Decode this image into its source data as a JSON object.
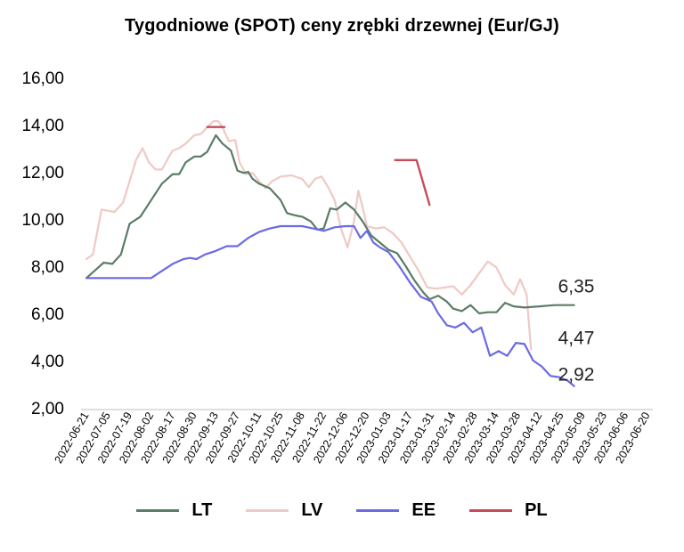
{
  "chart_data": {
    "type": "line",
    "title": "Tygodniowe (SPOT) ceny zrębki drzewnej (Eur/GJ)",
    "ylim": [
      2,
      16
    ],
    "yticks": [
      "2,00",
      "4,00",
      "6,00",
      "8,00",
      "10,00",
      "12,00",
      "14,00",
      "16,00"
    ],
    "xticks": [
      "2022-06-21",
      "2022-07-05",
      "2022-07-19",
      "2022-08-02",
      "2022-08-17",
      "2022-08-30",
      "2022-09-13",
      "2022-09-27",
      "2022-10-11",
      "2022-10-25",
      "2022-11-08",
      "2022-11-22",
      "2022-12-06",
      "2022-12-20",
      "2023-01-03",
      "2023-01-17",
      "2023-01-31",
      "2023-02-14",
      "2023-02-28",
      "2023-03-14",
      "2023-03-28",
      "2023-04-12",
      "2023-04-25",
      "2023-05-09",
      "2023-05-23",
      "2023-06-06",
      "2023-06-20"
    ],
    "grid": false,
    "legend_position": "bottom",
    "series": [
      {
        "name": "LT",
        "color": "#5b7c66",
        "points": [
          [
            0,
            7.5
          ],
          [
            0.5,
            7.9
          ],
          [
            0.8,
            8.15
          ],
          [
            1.2,
            8.1
          ],
          [
            1.6,
            8.5
          ],
          [
            2,
            9.8
          ],
          [
            2.5,
            10.1
          ],
          [
            3,
            10.8
          ],
          [
            3.5,
            11.5
          ],
          [
            4,
            11.9
          ],
          [
            4.3,
            11.9
          ],
          [
            4.6,
            12.4
          ],
          [
            5,
            12.65
          ],
          [
            5.3,
            12.65
          ],
          [
            5.6,
            12.85
          ],
          [
            6,
            13.55
          ],
          [
            6.3,
            13.2
          ],
          [
            6.7,
            12.9
          ],
          [
            7,
            12.05
          ],
          [
            7.3,
            11.95
          ],
          [
            7.5,
            12.0
          ],
          [
            7.7,
            11.7
          ],
          [
            8,
            11.5
          ],
          [
            8.5,
            11.3
          ],
          [
            9,
            10.8
          ],
          [
            9.3,
            10.25
          ],
          [
            9.7,
            10.15
          ],
          [
            10,
            10.1
          ],
          [
            10.4,
            9.9
          ],
          [
            10.7,
            9.55
          ],
          [
            11,
            9.6
          ],
          [
            11.3,
            10.45
          ],
          [
            11.6,
            10.4
          ],
          [
            12,
            10.7
          ],
          [
            12.4,
            10.4
          ],
          [
            12.8,
            9.9
          ],
          [
            13.2,
            9.3
          ],
          [
            13.6,
            9.0
          ],
          [
            14,
            8.7
          ],
          [
            14.4,
            8.55
          ],
          [
            14.8,
            8.0
          ],
          [
            15.2,
            7.4
          ],
          [
            15.6,
            6.9
          ],
          [
            15.9,
            6.6
          ],
          [
            16.3,
            6.75
          ],
          [
            16.7,
            6.5
          ],
          [
            17,
            6.2
          ],
          [
            17.4,
            6.1
          ],
          [
            17.8,
            6.35
          ],
          [
            18.2,
            6.0
          ],
          [
            18.6,
            6.05
          ],
          [
            19,
            6.05
          ],
          [
            19.4,
            6.45
          ],
          [
            19.8,
            6.3
          ],
          [
            20.3,
            6.25
          ],
          [
            21,
            6.3
          ],
          [
            21.7,
            6.35
          ],
          [
            22.2,
            6.35
          ],
          [
            22.6,
            6.35
          ]
        ]
      },
      {
        "name": "LV",
        "color": "#efc9c5",
        "points": [
          [
            0,
            8.3
          ],
          [
            0.3,
            8.5
          ],
          [
            0.7,
            10.4
          ],
          [
            1,
            10.35
          ],
          [
            1.3,
            10.3
          ],
          [
            1.7,
            10.7
          ],
          [
            2,
            11.6
          ],
          [
            2.3,
            12.5
          ],
          [
            2.6,
            13.0
          ],
          [
            2.9,
            12.4
          ],
          [
            3.2,
            12.1
          ],
          [
            3.5,
            12.1
          ],
          [
            3.8,
            12.6
          ],
          [
            4,
            12.9
          ],
          [
            4.3,
            13.0
          ],
          [
            4.6,
            13.2
          ],
          [
            5,
            13.55
          ],
          [
            5.3,
            13.6
          ],
          [
            5.6,
            13.9
          ],
          [
            5.9,
            14.15
          ],
          [
            6.1,
            14.15
          ],
          [
            6.3,
            13.9
          ],
          [
            6.6,
            13.3
          ],
          [
            6.9,
            13.35
          ],
          [
            7.1,
            12.4
          ],
          [
            7.4,
            11.9
          ],
          [
            7.7,
            11.95
          ],
          [
            8,
            11.6
          ],
          [
            8.3,
            11.3
          ],
          [
            8.6,
            11.6
          ],
          [
            9,
            11.8
          ],
          [
            9.5,
            11.85
          ],
          [
            10,
            11.7
          ],
          [
            10.3,
            11.35
          ],
          [
            10.6,
            11.7
          ],
          [
            10.9,
            11.8
          ],
          [
            11.2,
            11.35
          ],
          [
            11.5,
            10.8
          ],
          [
            11.8,
            9.6
          ],
          [
            12.1,
            8.8
          ],
          [
            12.4,
            9.9
          ],
          [
            12.6,
            11.2
          ],
          [
            12.8,
            10.5
          ],
          [
            13,
            9.7
          ],
          [
            13.4,
            9.6
          ],
          [
            13.8,
            9.65
          ],
          [
            14.2,
            9.4
          ],
          [
            14.6,
            9.0
          ],
          [
            15,
            8.4
          ],
          [
            15.4,
            7.8
          ],
          [
            15.8,
            7.1
          ],
          [
            16.2,
            7.05
          ],
          [
            16.6,
            7.1
          ],
          [
            17,
            7.15
          ],
          [
            17.4,
            6.8
          ],
          [
            17.8,
            7.2
          ],
          [
            18.2,
            7.7
          ],
          [
            18.6,
            8.2
          ],
          [
            19,
            7.95
          ],
          [
            19.4,
            7.2
          ],
          [
            19.8,
            6.8
          ],
          [
            20.1,
            7.45
          ],
          [
            20.4,
            6.8
          ],
          [
            20.6,
            4.47
          ]
        ]
      },
      {
        "name": "EE",
        "color": "#6a6ae6",
        "points": [
          [
            0,
            7.5
          ],
          [
            1,
            7.5
          ],
          [
            2,
            7.5
          ],
          [
            3,
            7.5
          ],
          [
            3.5,
            7.8
          ],
          [
            4,
            8.1
          ],
          [
            4.5,
            8.3
          ],
          [
            4.8,
            8.35
          ],
          [
            5.1,
            8.3
          ],
          [
            5.5,
            8.5
          ],
          [
            6,
            8.65
          ],
          [
            6.5,
            8.85
          ],
          [
            7,
            8.85
          ],
          [
            7.5,
            9.2
          ],
          [
            8,
            9.45
          ],
          [
            8.5,
            9.6
          ],
          [
            9,
            9.7
          ],
          [
            10,
            9.7
          ],
          [
            10.5,
            9.6
          ],
          [
            11,
            9.5
          ],
          [
            11.5,
            9.65
          ],
          [
            12,
            9.7
          ],
          [
            12.4,
            9.7
          ],
          [
            12.7,
            9.2
          ],
          [
            13,
            9.5
          ],
          [
            13.3,
            9.0
          ],
          [
            13.6,
            8.8
          ],
          [
            14,
            8.6
          ],
          [
            14.5,
            8.0
          ],
          [
            15,
            7.3
          ],
          [
            15.5,
            6.7
          ],
          [
            16,
            6.5
          ],
          [
            16.3,
            6.0
          ],
          [
            16.7,
            5.5
          ],
          [
            17.1,
            5.4
          ],
          [
            17.5,
            5.6
          ],
          [
            17.9,
            5.2
          ],
          [
            18.3,
            5.4
          ],
          [
            18.7,
            4.2
          ],
          [
            19.1,
            4.4
          ],
          [
            19.5,
            4.2
          ],
          [
            19.9,
            4.75
          ],
          [
            20.3,
            4.7
          ],
          [
            20.7,
            4.0
          ],
          [
            21.1,
            3.75
          ],
          [
            21.5,
            3.35
          ],
          [
            21.9,
            3.3
          ],
          [
            22.3,
            3.15
          ],
          [
            22.6,
            2.92
          ]
        ]
      },
      {
        "name": "PL",
        "color": "#c84a5a",
        "segments": [
          [
            [
              5.6,
              13.9
            ],
            [
              6.4,
              13.9
            ]
          ],
          [
            [
              14.3,
              12.5
            ],
            [
              15.3,
              12.5
            ],
            [
              15.9,
              10.6
            ]
          ]
        ]
      }
    ],
    "end_labels": [
      {
        "text": "6,35",
        "x": 22.6,
        "y": 6.35
      },
      {
        "text": "4,47",
        "x": 22.6,
        "y": 4.47
      },
      {
        "text": "2,92",
        "x": 22.6,
        "y": 2.92
      }
    ]
  }
}
